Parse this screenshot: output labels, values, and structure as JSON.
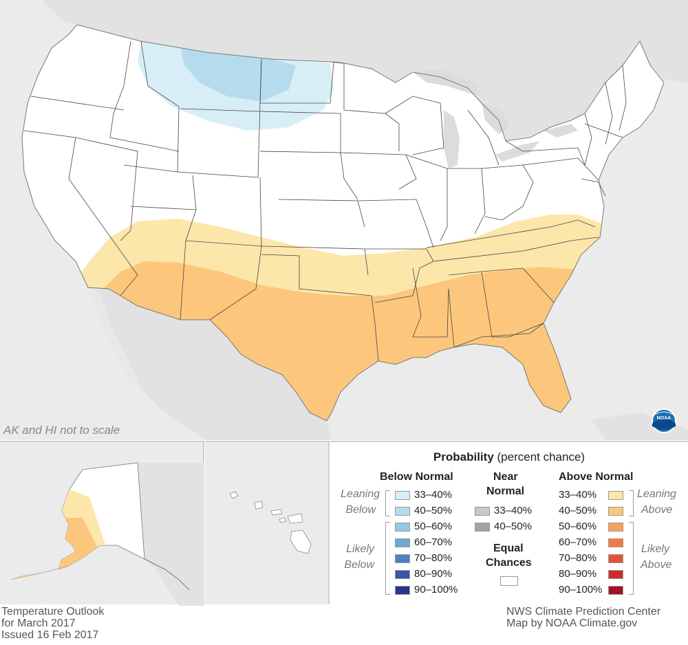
{
  "map_note": "AK and HI not to scale",
  "legend": {
    "title_bold": "Probability",
    "title_rest": " (percent chance)",
    "below": {
      "heading": "Below Normal",
      "leaning_label": [
        "Leaning",
        "Below"
      ],
      "likely_label": [
        "Likely",
        "Below"
      ],
      "items": [
        {
          "label": "33–40%",
          "color": "#d8eef6"
        },
        {
          "label": "40–50%",
          "color": "#b5dcec"
        },
        {
          "label": "50–60%",
          "color": "#94c8e3"
        },
        {
          "label": "60–70%",
          "color": "#6ea8d4"
        },
        {
          "label": "70–80%",
          "color": "#4f80c4"
        },
        {
          "label": "80–90%",
          "color": "#3a55a8"
        },
        {
          "label": "90–100%",
          "color": "#283590"
        }
      ]
    },
    "near": {
      "heading": [
        "Near",
        "Normal"
      ],
      "items": [
        {
          "label": "33–40%",
          "color": "#c8c8c8"
        },
        {
          "label": "40–50%",
          "color": "#a3a3a3"
        }
      ]
    },
    "equal": {
      "heading": [
        "Equal",
        "Chances"
      ],
      "color": "#ffffff"
    },
    "above": {
      "heading": "Above Normal",
      "leaning_label": [
        "Leaning",
        "Above"
      ],
      "likely_label": [
        "Likely",
        "Above"
      ],
      "items": [
        {
          "label": "33–40%",
          "color": "#fde6aa"
        },
        {
          "label": "40–50%",
          "color": "#fcc77c"
        },
        {
          "label": "50–60%",
          "color": "#f7a25e"
        },
        {
          "label": "60–70%",
          "color": "#f07a48"
        },
        {
          "label": "70–80%",
          "color": "#e2533a"
        },
        {
          "label": "80–90%",
          "color": "#c92d2f"
        },
        {
          "label": "90–100%",
          "color": "#a4102a"
        }
      ]
    }
  },
  "credits_left": [
    "Temperature Outlook",
    "for March 2017",
    "Issued 16 Feb 2017"
  ],
  "credits_right": [
    "NWS Climate Prediction Center",
    "Map by NOAA Climate.gov"
  ],
  "logo_text": "NOAA",
  "colors": {
    "background": "#ebebeb",
    "land_other": "#e2e2e2",
    "conus": "#ffffff",
    "panel_border": "#cfcfcf",
    "lakes": "#dcdcdc"
  }
}
